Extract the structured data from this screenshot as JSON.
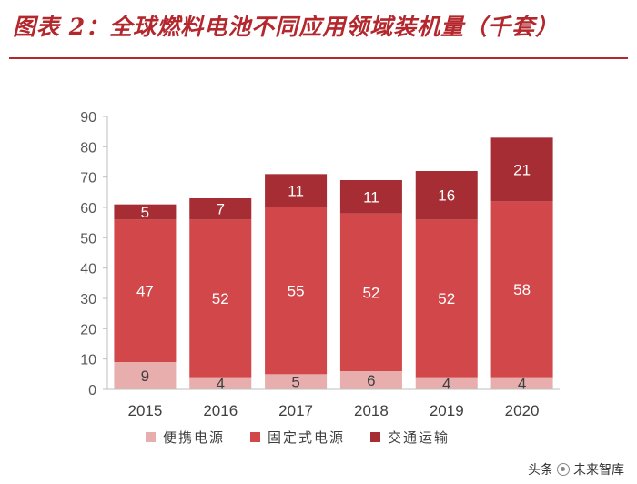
{
  "header": {
    "title": "图表 2：全球燃料电池不同应用领域装机量（千套）"
  },
  "chart_data": {
    "type": "bar",
    "stacked": true,
    "title": "图表 2：全球燃料电池不同应用领域装机量（千套）",
    "xlabel": "",
    "ylabel": "",
    "ylim": [
      0,
      90
    ],
    "yticks": [
      0,
      10,
      20,
      30,
      40,
      50,
      60,
      70,
      80,
      90
    ],
    "categories": [
      "2015",
      "2016",
      "2017",
      "2018",
      "2019",
      "2020"
    ],
    "series": [
      {
        "name": "便携电源",
        "color": "#e8aeae",
        "values": [
          9,
          4,
          5,
          6,
          4,
          4
        ]
      },
      {
        "name": "固定式电源",
        "color": "#d1474a",
        "values": [
          47,
          52,
          55,
          52,
          52,
          58
        ]
      },
      {
        "name": "交通运输",
        "color": "#a52d33",
        "values": [
          5,
          7,
          11,
          11,
          16,
          21
        ]
      }
    ],
    "legend_position": "bottom",
    "grid": false
  },
  "watermark": {
    "text_before": "头条",
    "text_after": "未来智库",
    "icon": "watermark-logo-icon"
  }
}
